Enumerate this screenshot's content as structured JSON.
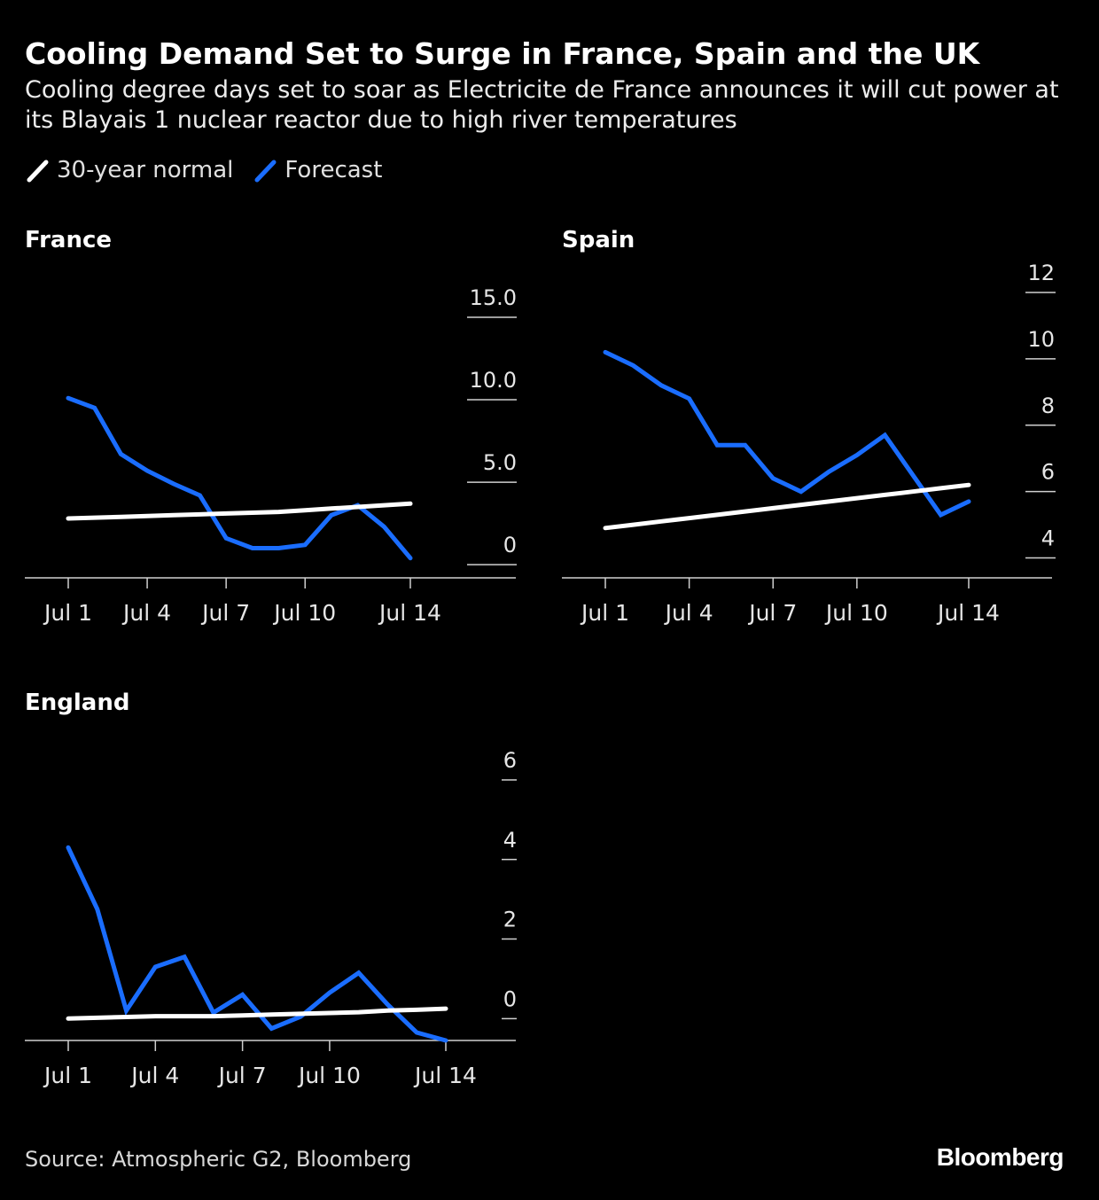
{
  "title": "Cooling Demand Set to Surge in France, Spain and the UK",
  "subtitle": "Cooling degree days set to soar as Electricite de France announces it will cut power at its Blayais 1 nuclear reactor due to high river temperatures",
  "legend": {
    "normal_label": "30-year normal",
    "forecast_label": "Forecast"
  },
  "colors": {
    "normal": "#ffffff",
    "forecast": "#1a6dff",
    "background": "#000000",
    "axis": "#cfcfcf"
  },
  "source": "Source: Atmospheric G2, Bloomberg",
  "brand": "Bloomberg",
  "chart_data": [
    {
      "type": "line",
      "title": "France",
      "x": [
        1,
        2,
        3,
        4,
        5,
        6,
        7,
        8,
        9,
        10,
        11,
        12,
        13,
        14
      ],
      "xticks": [
        1,
        4,
        7,
        10,
        14
      ],
      "xticklabels": [
        "Jul 1",
        "Jul 4",
        "Jul 7",
        "Jul 10",
        "Jul 14"
      ],
      "xlim": [
        1,
        14
      ],
      "ylim": [
        -0.8,
        15.0
      ],
      "yticks": [
        0,
        5.0,
        10.0,
        15.0
      ],
      "yticklabels": [
        "0",
        "5.0",
        "10.0",
        "15.0"
      ],
      "series": [
        {
          "name": "Forecast",
          "values": [
            10.1,
            9.5,
            6.7,
            5.7,
            4.9,
            4.2,
            1.6,
            1.0,
            1.0,
            1.2,
            3.0,
            3.6,
            2.3,
            0.4
          ]
        },
        {
          "name": "30-year normal",
          "values": [
            2.8,
            2.85,
            2.9,
            2.95,
            3.0,
            3.05,
            3.1,
            3.15,
            3.2,
            3.3,
            3.4,
            3.5,
            3.6,
            3.7
          ]
        }
      ]
    },
    {
      "type": "line",
      "title": "Spain",
      "x": [
        1,
        2,
        3,
        4,
        5,
        6,
        7,
        8,
        9,
        10,
        11,
        12,
        13,
        14
      ],
      "xticks": [
        1,
        4,
        7,
        10,
        14
      ],
      "xticklabels": [
        "Jul 1",
        "Jul 4",
        "Jul 7",
        "Jul 10",
        "Jul 14"
      ],
      "xlim": [
        1,
        14
      ],
      "ylim": [
        3.4,
        12.0
      ],
      "yticks": [
        4,
        6,
        8,
        10,
        12
      ],
      "yticklabels": [
        "4",
        "6",
        "8",
        "10",
        "12"
      ],
      "series": [
        {
          "name": "Forecast",
          "values": [
            10.2,
            9.8,
            9.2,
            8.8,
            7.4,
            7.4,
            6.4,
            6.0,
            6.6,
            7.1,
            7.7,
            6.5,
            5.3,
            5.7
          ]
        },
        {
          "name": "30-year normal",
          "values": [
            4.9,
            5.0,
            5.1,
            5.2,
            5.3,
            5.4,
            5.5,
            5.6,
            5.7,
            5.8,
            5.9,
            6.0,
            6.1,
            6.2
          ]
        }
      ]
    },
    {
      "type": "line",
      "title": "England",
      "x": [
        1,
        2,
        3,
        4,
        5,
        6,
        7,
        8,
        9,
        10,
        11,
        12,
        13,
        14
      ],
      "xticks": [
        1,
        4,
        7,
        10,
        14
      ],
      "xticklabels": [
        "Jul 1",
        "Jul 4",
        "Jul 7",
        "Jul 10",
        "Jul 14"
      ],
      "xlim": [
        1,
        14
      ],
      "ylim": [
        -0.55,
        6.0
      ],
      "yticks": [
        0,
        2,
        4,
        6
      ],
      "yticklabels": [
        "0",
        "2",
        "4",
        "6"
      ],
      "series": [
        {
          "name": "Forecast",
          "values": [
            4.3,
            2.75,
            0.2,
            1.3,
            1.55,
            0.15,
            0.6,
            -0.25,
            0.05,
            0.65,
            1.15,
            0.35,
            -0.35,
            -0.55
          ]
        },
        {
          "name": "30-year normal",
          "values": [
            0.0,
            0.02,
            0.04,
            0.06,
            0.06,
            0.06,
            0.08,
            0.1,
            0.12,
            0.14,
            0.16,
            0.2,
            0.22,
            0.25
          ]
        }
      ]
    }
  ]
}
